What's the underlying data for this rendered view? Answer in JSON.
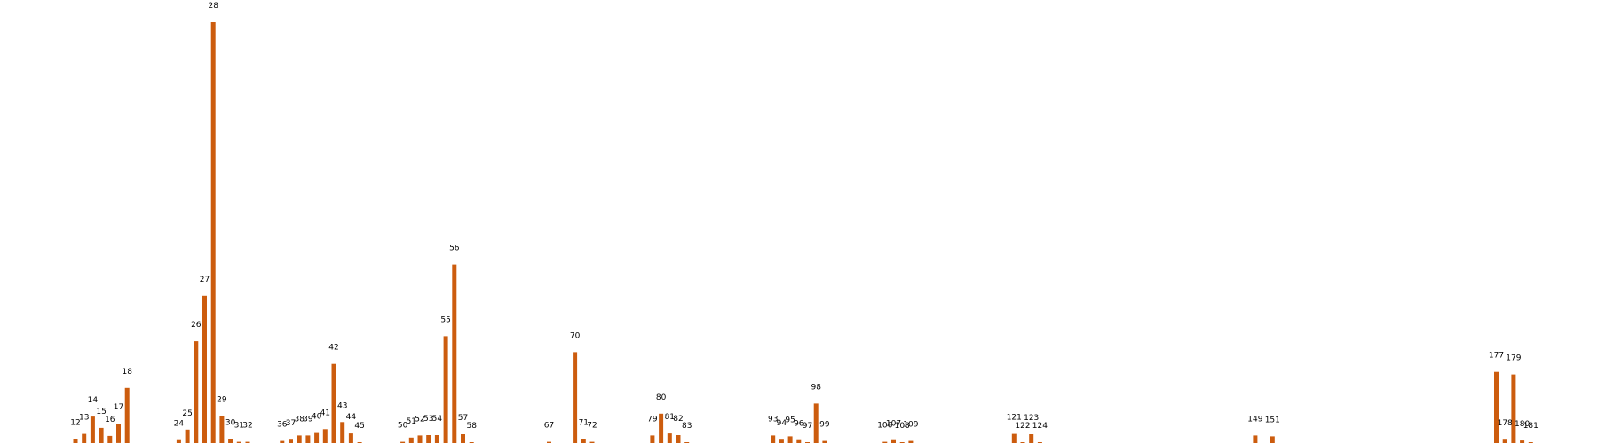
{
  "chart_data": {
    "type": "bar",
    "title": "",
    "xlabel": "",
    "ylabel": "",
    "axes_visible": false,
    "grid": false,
    "legend": "none",
    "bar_color": "#cc5c0e",
    "ylim": [
      0,
      100
    ],
    "categories": [
      "12",
      "13",
      "14",
      "15",
      "16",
      "17",
      "18",
      "24",
      "25",
      "26",
      "27",
      "28",
      "29",
      "30",
      "31",
      "32",
      "36",
      "37",
      "38",
      "39",
      "40",
      "41",
      "42",
      "43",
      "44",
      "45",
      "50",
      "51",
      "52",
      "53",
      "54",
      "55",
      "56",
      "57",
      "58",
      "67",
      "70",
      "71",
      "72",
      "79",
      "80",
      "81",
      "82",
      "83",
      "93",
      "94",
      "95",
      "96",
      "97",
      "98",
      "99",
      "106",
      "107",
      "108",
      "109",
      "121",
      "122",
      "123",
      "124",
      "149",
      "151",
      "177",
      "178",
      "179",
      "180",
      "181"
    ],
    "values": [
      1.0,
      2.2,
      6.3,
      3.6,
      1.7,
      4.6,
      13.1,
      0.7,
      3.2,
      24.2,
      35.0,
      100.0,
      6.4,
      1.0,
      0.3,
      0.3,
      0.5,
      0.8,
      1.8,
      1.8,
      2.4,
      3.3,
      18.8,
      5.0,
      2.3,
      0.2,
      0.3,
      1.3,
      1.8,
      1.9,
      1.9,
      25.4,
      42.4,
      2.1,
      0.2,
      0.3,
      21.6,
      1.0,
      0.3,
      1.8,
      7.0,
      2.3,
      1.9,
      0.1,
      1.8,
      0.8,
      1.6,
      0.7,
      0.2,
      9.4,
      0.5,
      0.3,
      0.7,
      0.2,
      0.5,
      2.2,
      0.2,
      2.1,
      0.1,
      1.8,
      1.6,
      16.9,
      0.8,
      16.3,
      0.6,
      0.1
    ]
  }
}
